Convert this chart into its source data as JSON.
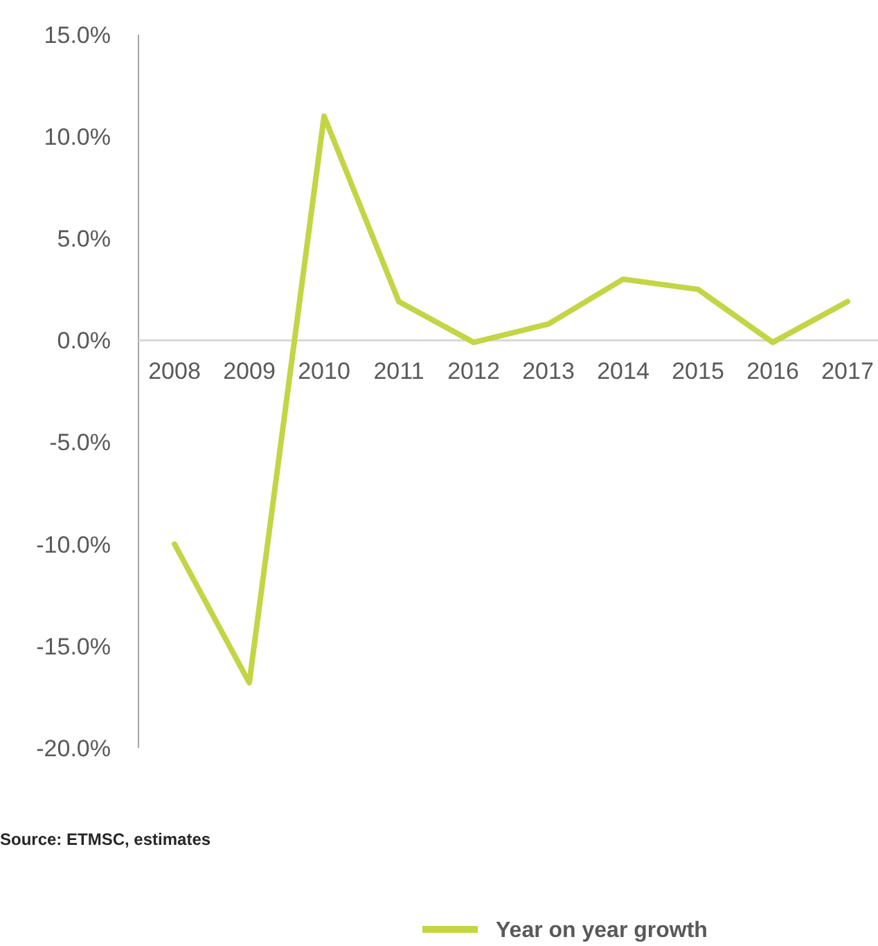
{
  "chart_data": {
    "type": "line",
    "categories": [
      "2008",
      "2009",
      "2010",
      "2011",
      "2012",
      "2013",
      "2014",
      "2015",
      "2016",
      "2017"
    ],
    "series": [
      {
        "name": "Year on year growth",
        "color": "#c3d545",
        "values": [
          -10,
          -16.8,
          11,
          1.9,
          -0.1,
          0.8,
          3,
          2.5,
          -0.1,
          1.9
        ]
      }
    ],
    "ylim": [
      -20,
      15
    ],
    "yticks": [
      {
        "value": -20,
        "label": "-20.0%"
      },
      {
        "value": -15,
        "label": "-15.0%"
      },
      {
        "value": -10,
        "label": "-10.0%"
      },
      {
        "value": -5,
        "label": "-5.0%"
      },
      {
        "value": 0,
        "label": "0.0%"
      },
      {
        "value": 5,
        "label": "5.0%"
      },
      {
        "value": 10,
        "label": "10.0%"
      },
      {
        "value": 15,
        "label": "15.0%"
      }
    ],
    "annotations": [
      "Source:  ETMSC, estimates"
    ],
    "legend": "bottom",
    "grid": false,
    "marker": "none",
    "line_style": "solid"
  }
}
